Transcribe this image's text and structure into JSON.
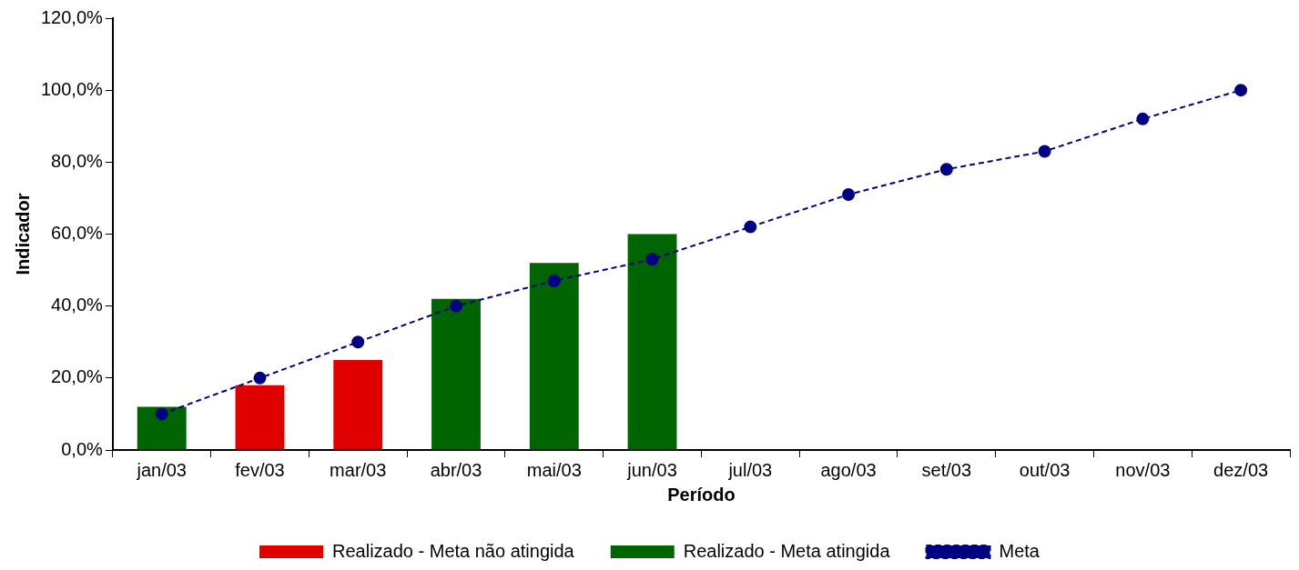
{
  "chart_data": {
    "type": "bar",
    "xlabel": "Período",
    "ylabel": "Indicador",
    "categories": [
      "jan/03",
      "fev/03",
      "mar/03",
      "abr/03",
      "mai/03",
      "jun/03",
      "jul/03",
      "ago/03",
      "set/03",
      "out/03",
      "nov/03",
      "dez/03"
    ],
    "series": [
      {
        "name": "Realizado - Meta não atingida",
        "color": "#e00000",
        "values": [
          null,
          18,
          25,
          null,
          null,
          null,
          null,
          null,
          null,
          null,
          null,
          null
        ]
      },
      {
        "name": "Realizado - Meta atingida",
        "color": "#006400",
        "values": [
          12,
          null,
          null,
          42,
          52,
          60,
          null,
          null,
          null,
          null,
          null,
          null
        ]
      },
      {
        "name": "Meta",
        "type": "line",
        "color": "#000080",
        "marker": "circle",
        "line_style": "dashed",
        "values": [
          10,
          20,
          30,
          40,
          47,
          53,
          62,
          71,
          78,
          83,
          92,
          100
        ]
      }
    ],
    "ylim": [
      0,
      120
    ],
    "yticks": [
      {
        "value": 0,
        "label": "0,0%"
      },
      {
        "value": 20,
        "label": "20,0%"
      },
      {
        "value": 40,
        "label": "40,0%"
      },
      {
        "value": 60,
        "label": "60,0%"
      },
      {
        "value": 80,
        "label": "80,0%"
      },
      {
        "value": 100,
        "label": "100,0%"
      },
      {
        "value": 120,
        "label": "120,0%"
      }
    ],
    "grid": false,
    "legend": "bottom"
  }
}
